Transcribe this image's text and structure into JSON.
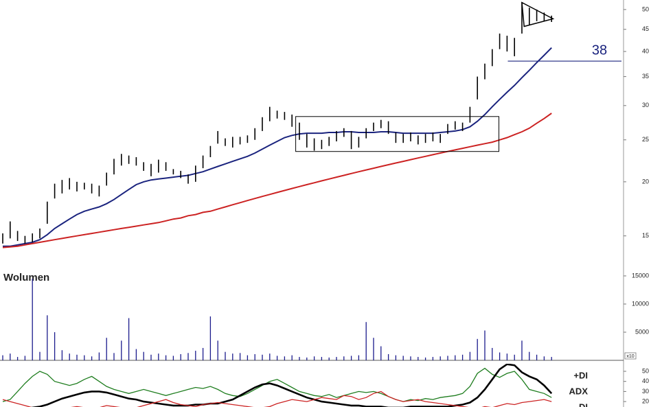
{
  "chart_data": [
    {
      "type": "stock",
      "log_scale": true,
      "ylim": [
        12.9,
        52.6
      ],
      "yticks": [
        15,
        20,
        25,
        30,
        35,
        40,
        45,
        50
      ],
      "color": "#000000",
      "low": [
        14.4,
        14.8,
        14.6,
        14.4,
        14.5,
        14.8,
        16.0,
        18.3,
        18.8,
        19.2,
        19.0,
        19.2,
        18.8,
        18.5,
        19.6,
        20.8,
        21.8,
        22.0,
        21.8,
        21.2,
        20.6,
        21.0,
        21.2,
        20.8,
        20.4,
        19.8,
        20.0,
        21.5,
        22.8,
        24.5,
        24.2,
        24.0,
        24.4,
        24.6,
        25.0,
        26.2,
        27.6,
        28.0,
        27.8,
        26.8,
        25.0,
        24.0,
        23.6,
        23.8,
        24.2,
        24.8,
        25.4,
        23.8,
        24.0,
        25.2,
        26.2,
        26.6,
        25.8,
        24.6,
        24.6,
        24.8,
        24.4,
        24.6,
        24.8,
        24.6,
        25.8,
        26.4,
        26.2,
        27.4,
        31.0,
        34.5,
        37.0,
        40.5,
        40.0,
        39.0,
        44.0,
        46.0,
        47.0,
        47.0,
        46.8
      ],
      "high": [
        15.2,
        16.2,
        15.4,
        15.0,
        15.2,
        15.6,
        18.0,
        19.8,
        20.2,
        20.4,
        20.0,
        19.9,
        19.8,
        19.6,
        21.0,
        22.6,
        23.2,
        23.0,
        22.8,
        22.2,
        22.0,
        22.5,
        22.2,
        21.4,
        21.2,
        20.8,
        21.8,
        23.0,
        24.2,
        26.2,
        25.2,
        25.4,
        25.4,
        25.6,
        26.6,
        28.2,
        29.8,
        29.2,
        29.0,
        28.6,
        27.4,
        25.8,
        25.2,
        25.0,
        25.4,
        26.2,
        26.6,
        26.2,
        25.4,
        26.6,
        27.4,
        27.8,
        27.6,
        26.0,
        25.8,
        26.0,
        25.6,
        25.8,
        26.0,
        25.8,
        27.2,
        27.6,
        27.4,
        29.8,
        35.0,
        37.5,
        40.5,
        44.0,
        43.5,
        43.0,
        52.0,
        50.5,
        50.0,
        49.2,
        48.4
      ],
      "moving_averages": [
        {
          "color": "#1a237e",
          "values": [
            14.2,
            14.2,
            14.3,
            14.4,
            14.5,
            14.7,
            15.1,
            15.6,
            16.0,
            16.4,
            16.8,
            17.1,
            17.3,
            17.5,
            17.8,
            18.2,
            18.7,
            19.2,
            19.7,
            20.0,
            20.2,
            20.3,
            20.4,
            20.5,
            20.6,
            20.7,
            20.9,
            21.1,
            21.4,
            21.7,
            22.0,
            22.3,
            22.6,
            22.9,
            23.3,
            23.8,
            24.3,
            24.8,
            25.3,
            25.6,
            25.8,
            25.9,
            25.9,
            25.9,
            26.0,
            26.0,
            26.1,
            26.1,
            26.0,
            26.0,
            26.0,
            26.1,
            26.1,
            26.0,
            25.9,
            25.9,
            25.9,
            25.9,
            25.9,
            26.0,
            26.1,
            26.2,
            26.4,
            26.8,
            27.6,
            28.6,
            29.8,
            31.0,
            32.2,
            33.4,
            34.8,
            36.2,
            37.7,
            39.2,
            40.8
          ]
        },
        {
          "color": "#cc2222",
          "values": [
            14.1,
            14.15,
            14.2,
            14.3,
            14.4,
            14.5,
            14.6,
            14.7,
            14.8,
            14.9,
            15.0,
            15.1,
            15.2,
            15.3,
            15.4,
            15.5,
            15.6,
            15.7,
            15.8,
            15.9,
            16.0,
            16.1,
            16.25,
            16.4,
            16.5,
            16.7,
            16.8,
            17.0,
            17.1,
            17.3,
            17.5,
            17.7,
            17.9,
            18.1,
            18.3,
            18.5,
            18.7,
            18.9,
            19.1,
            19.3,
            19.5,
            19.7,
            19.9,
            20.1,
            20.3,
            20.5,
            20.7,
            20.9,
            21.1,
            21.3,
            21.5,
            21.7,
            21.9,
            22.1,
            22.3,
            22.5,
            22.7,
            22.9,
            23.1,
            23.3,
            23.5,
            23.7,
            23.9,
            24.1,
            24.3,
            24.5,
            24.7,
            25.0,
            25.3,
            25.7,
            26.1,
            26.6,
            27.3,
            28.0,
            28.8
          ]
        }
      ],
      "range_box": {
        "start": 39.5,
        "end": 66.9,
        "low": 23.5,
        "high": 28.3
      },
      "triangle": {
        "x": [
          70.0,
          74.2,
          70.3
        ],
        "y": [
          51.9,
          47.6,
          45.7
        ]
      },
      "level": 38,
      "level_start": 68.1,
      "level_color": "#1a237e"
    },
    {
      "type": "bar",
      "title": "Wolumen",
      "unit_label": "x10",
      "ylim": [
        0,
        15850
      ],
      "yticks": [
        5000,
        10000,
        15000
      ],
      "color": "#1a1a8c",
      "values": [
        900,
        1200,
        600,
        800,
        14500,
        1500,
        8000,
        5000,
        1800,
        1200,
        1000,
        900,
        700,
        1400,
        4000,
        1300,
        3500,
        7500,
        2000,
        1500,
        1000,
        1200,
        900,
        800,
        1100,
        1300,
        1700,
        2200,
        7800,
        3500,
        1500,
        1200,
        1300,
        900,
        1100,
        1000,
        1200,
        800,
        700,
        900,
        600,
        500,
        700,
        600,
        500,
        600,
        700,
        800,
        900,
        6800,
        4000,
        2500,
        1100,
        900,
        800,
        700,
        600,
        500,
        600,
        700,
        800,
        900,
        1000,
        1500,
        3800,
        5300,
        2200,
        1400,
        1200,
        1000,
        3500,
        1500,
        1000,
        700,
        600
      ]
    },
    {
      "type": "line",
      "ylim": [
        14.6,
        57.5
      ],
      "yticks": [
        20,
        30,
        40,
        50
      ],
      "series": [
        {
          "name": "+DI",
          "color": "#1e7d1e",
          "width": 1.3,
          "values": [
            20,
            22,
            30,
            38,
            45,
            50,
            47,
            40,
            38,
            36,
            38,
            42,
            45,
            40,
            35,
            32,
            30,
            28,
            30,
            32,
            30,
            28,
            26,
            28,
            30,
            32,
            34,
            33,
            35,
            32,
            28,
            26,
            25,
            28,
            32,
            36,
            40,
            42,
            38,
            34,
            30,
            28,
            26,
            25,
            27,
            24,
            26,
            28,
            30,
            29,
            30,
            28,
            25,
            22,
            20,
            22,
            21,
            23,
            22,
            24,
            25,
            26,
            28,
            35,
            48,
            53,
            47,
            44,
            48,
            50,
            42,
            32,
            30,
            28,
            24
          ]
        },
        {
          "name": "ADX",
          "color": "#000000",
          "width": 2.6,
          "values": [
            10,
            11,
            12,
            13,
            14,
            15,
            17,
            20,
            23,
            25,
            27,
            29,
            30,
            30,
            29,
            27,
            25,
            23,
            22,
            20,
            19,
            18,
            17,
            16,
            16,
            16,
            17,
            17,
            18,
            18,
            20,
            22,
            26,
            30,
            34,
            37,
            38,
            36,
            33,
            30,
            27,
            24,
            22,
            20,
            19,
            18,
            17,
            16,
            16,
            15,
            15,
            15,
            14,
            14,
            14,
            15,
            15,
            15,
            15,
            15,
            15,
            16,
            17,
            19,
            24,
            32,
            42,
            52,
            57,
            56,
            49,
            45,
            42,
            36,
            28
          ]
        },
        {
          "name": "-DI",
          "color": "#cc2222",
          "width": 1.3,
          "values": [
            22,
            20,
            18,
            16,
            14,
            13,
            12,
            12,
            13,
            14,
            15,
            14,
            13,
            14,
            16,
            15,
            14,
            13,
            14,
            16,
            18,
            20,
            22,
            19,
            17,
            16,
            15,
            17,
            18,
            19,
            18,
            17,
            16,
            15,
            14,
            14,
            15,
            18,
            20,
            22,
            21,
            20,
            22,
            24,
            23,
            22,
            26,
            25,
            22,
            24,
            28,
            30,
            25,
            22,
            20,
            21,
            22,
            20,
            19,
            18,
            17,
            16,
            15,
            14,
            13,
            15,
            14,
            16,
            18,
            17,
            19,
            20,
            21,
            22,
            20
          ]
        }
      ]
    }
  ]
}
